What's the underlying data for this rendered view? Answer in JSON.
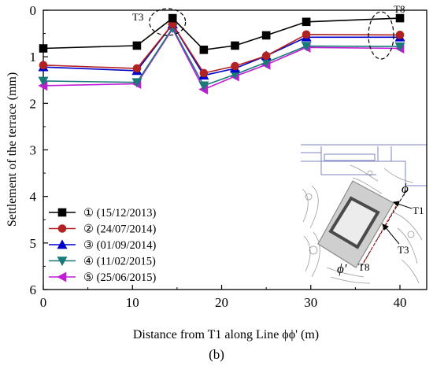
{
  "chart_data": {
    "type": "line",
    "ylabel": "Settlement of the terrace (mm)",
    "xlabel": "Distance from T1 along Line ϕϕ' (m)",
    "xlim": [
      0,
      43
    ],
    "ylim": [
      0,
      6
    ],
    "y_inverted": true,
    "x_ticks": [
      0,
      10,
      20,
      30,
      40
    ],
    "y_ticks": [
      0,
      1,
      2,
      3,
      4,
      5,
      6
    ],
    "grid": false,
    "legend_position": "bottom-left",
    "x": [
      0,
      10.5,
      14.5,
      18,
      21.5,
      25,
      29.5,
      40
    ],
    "series": [
      {
        "name": "① (15/12/2013)",
        "color": "#000000",
        "marker": "square",
        "values": [
          0.82,
          0.76,
          0.17,
          0.85,
          0.76,
          0.54,
          0.25,
          0.17
        ]
      },
      {
        "name": "② (24/07/2014)",
        "color": "#b22222",
        "marker": "circle",
        "values": [
          1.18,
          1.25,
          0.3,
          1.35,
          1.2,
          0.98,
          0.52,
          0.53
        ]
      },
      {
        "name": "③ (01/09/2014)",
        "color": "#0000cc",
        "marker": "triangle-up",
        "values": [
          1.22,
          1.3,
          0.3,
          1.4,
          1.25,
          0.98,
          0.58,
          0.58
        ]
      },
      {
        "name": "④ (11/02/2015)",
        "color": "#1a7a7a",
        "marker": "triangle-down",
        "values": [
          1.52,
          1.55,
          0.38,
          1.62,
          1.38,
          1.12,
          0.77,
          0.78
        ]
      },
      {
        "name": "⑤ (25/06/2015)",
        "color": "#c21bd6",
        "marker": "triangle-left",
        "values": [
          1.62,
          1.58,
          0.4,
          1.7,
          1.42,
          1.17,
          0.8,
          0.82
        ]
      }
    ],
    "annotations": [
      "T3",
      "T8"
    ],
    "inset_labels": [
      "ϕ",
      "T1",
      "T3",
      "ϕ'",
      "T8"
    ]
  },
  "caption": "(b)"
}
